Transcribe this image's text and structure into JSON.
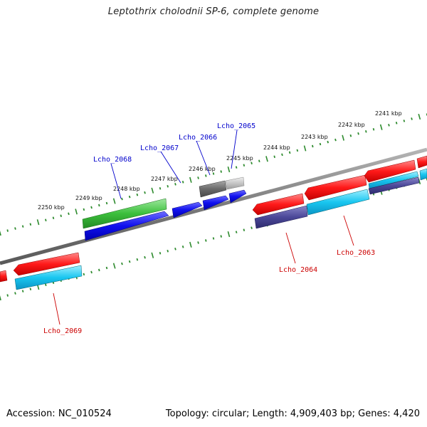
{
  "title": "Leptothrix cholodnii SP-6, complete genome",
  "accession": "Accession: NC_010524",
  "topology": "Topology: circular; Length: 4,909,403 bp; Genes: 4,420",
  "colors": {
    "background": "#ffffff",
    "backbone": "#7a7a7a",
    "tick": "#2e8b2e",
    "forward_label": "#0000cc",
    "reverse_label": "#cc0000"
  },
  "scale_labels": [
    "2241 kbp",
    "2242 kbp",
    "2243 kbp",
    "2244 kbp",
    "2245 kbp",
    "2246 kbp",
    "2247 kbp",
    "2248 kbp",
    "2249 kbp",
    "2250 kbp"
  ],
  "gene_labels": [
    {
      "text": "Lcho_2065",
      "color": "#0000cc"
    },
    {
      "text": "Lcho_2066",
      "color": "#0000cc"
    },
    {
      "text": "Lcho_2067",
      "color": "#0000cc"
    },
    {
      "text": "Lcho_2068",
      "color": "#0000cc"
    },
    {
      "text": "Lcho_2063",
      "color": "#cc0000"
    },
    {
      "text": "Lcho_2064",
      "color": "#cc0000"
    },
    {
      "text": "Lcho_2069",
      "color": "#cc0000"
    }
  ]
}
